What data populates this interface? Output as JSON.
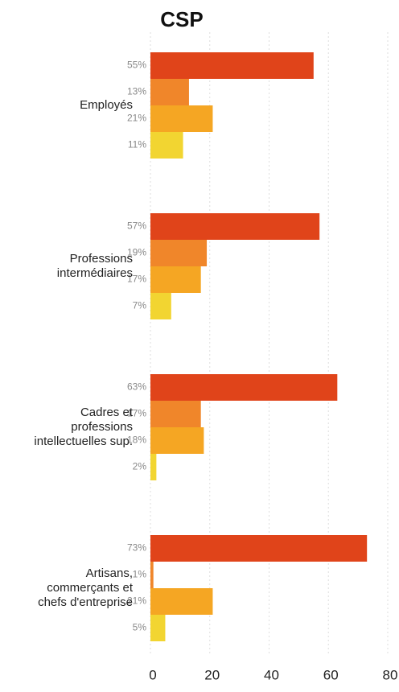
{
  "chart_data": {
    "type": "bar",
    "orientation": "horizontal",
    "title": "CSP",
    "categories": [
      "Employés",
      "Professions intermédiaires",
      "Cadres et professions intellectuelles sup.",
      "Artisans, commerçants et chefs d'entreprise"
    ],
    "series": [
      {
        "color": "#e0441a",
        "values": [
          55,
          57,
          63,
          73
        ],
        "value_labels": [
          "55%",
          "57%",
          "63%",
          "73%"
        ]
      },
      {
        "color": "#f0862a",
        "values": [
          13,
          19,
          17,
          1
        ],
        "value_labels": [
          "13%",
          "19%",
          "17%",
          "1%"
        ]
      },
      {
        "color": "#f5a623",
        "values": [
          21,
          17,
          18,
          21
        ],
        "value_labels": [
          "21%",
          "17%",
          "18%",
          "21%"
        ]
      },
      {
        "color": "#f2d531",
        "values": [
          11,
          7,
          2,
          5
        ],
        "value_labels": [
          "11%",
          "7%",
          "2%",
          "5%"
        ]
      }
    ],
    "xlim": [
      0,
      80
    ],
    "xticks": [
      0,
      20,
      40,
      60,
      80
    ],
    "grid": true
  }
}
